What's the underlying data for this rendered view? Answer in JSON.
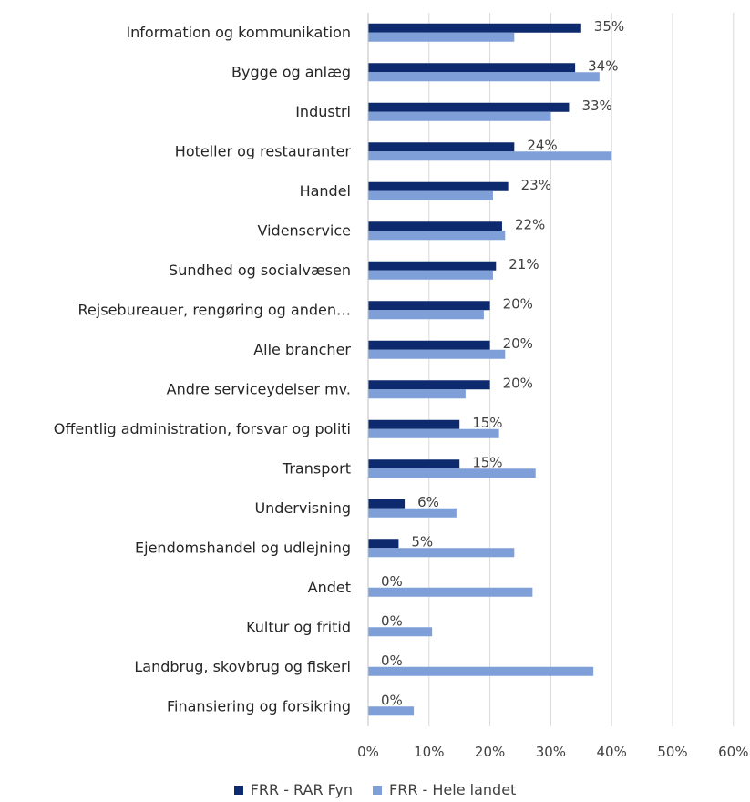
{
  "chart_data": {
    "type": "bar",
    "orientation": "horizontal",
    "categories": [
      "Information og kommunikation",
      "Bygge og anlæg",
      "Industri",
      "Hoteller og restauranter",
      "Handel",
      "Videnservice",
      "Sundhed og socialvæsen",
      "Rejsebureauer, rengøring og anden…",
      "Alle brancher",
      "Andre serviceydelser mv.",
      "Offentlig administration, forsvar og politi",
      "Transport",
      "Undervisning",
      "Ejendomshandel og udlejning",
      "Andet",
      "Kultur og fritid",
      "Landbrug, skovbrug og fiskeri",
      "Finansiering og forsikring"
    ],
    "series": [
      {
        "name": "FRR - RAR Fyn",
        "color": "#0e2a6e",
        "values": [
          35,
          34,
          33,
          24,
          23,
          22,
          21,
          20,
          20,
          20,
          15,
          15,
          6,
          5,
          0,
          0,
          0,
          0
        ],
        "data_labels": [
          "35%",
          "34%",
          "33%",
          "24%",
          "23%",
          "22%",
          "21%",
          "20%",
          "20%",
          "20%",
          "15%",
          "15%",
          "6%",
          "5%",
          "0%",
          "0%",
          "0%",
          "0%"
        ]
      },
      {
        "name": "FRR - Hele landet",
        "color": "#7f9fd8",
        "values": [
          24,
          38,
          30,
          40,
          20.5,
          22.5,
          20.5,
          19,
          22.5,
          16,
          21.5,
          27.5,
          14.5,
          24,
          27,
          10.5,
          37,
          7.5
        ]
      }
    ],
    "x_ticks": [
      "0%",
      "10%",
      "20%",
      "30%",
      "40%",
      "50%",
      "60%"
    ],
    "xlim": [
      0,
      60
    ],
    "grid": true,
    "legend_position": "bottom",
    "title": "",
    "xlabel": "",
    "ylabel": ""
  }
}
